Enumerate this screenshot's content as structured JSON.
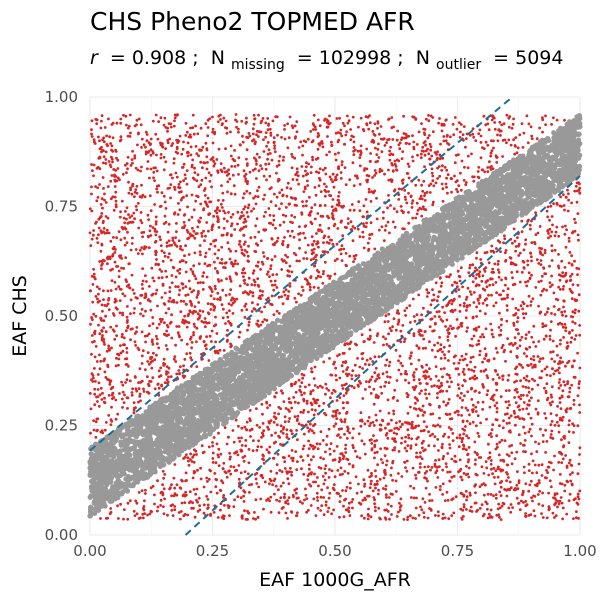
{
  "chart_data": {
    "type": "scatter",
    "title": "CHS Pheno2 TOPMED AFR",
    "subtitle": {
      "r_symbol": "r",
      "r_value": "= 0.908 ;",
      "n_symbol_1": "N",
      "n_sub_1": "missing",
      "n_value_1": "= 102998 ;",
      "n_symbol_2": "N",
      "n_sub_2": "outlier",
      "n_value_2": "= 5094"
    },
    "xlabel": "EAF 1000G_AFR",
    "ylabel": "EAF CHS",
    "xlim": [
      0,
      1
    ],
    "ylim": [
      0,
      1
    ],
    "x_ticks": [
      "0.00",
      "0.25",
      "0.50",
      "0.75",
      "1.00"
    ],
    "y_ticks": [
      "0.00",
      "0.25",
      "0.50",
      "0.75",
      "1.00"
    ],
    "grid": true,
    "series": [
      {
        "role": "inlier",
        "color": "#999999",
        "band": {
          "x": [
            0,
            1
          ],
          "lower_at_x0": 0.04,
          "upper_at_x0": 0.2,
          "lower_at_x1": 0.82,
          "upper_at_x1": 0.96,
          "y_range": [
            0.035,
            0.96
          ]
        }
      },
      {
        "role": "outlier",
        "color": "#d62728",
        "count": 5094
      }
    ],
    "reference_lines": [
      {
        "style": "dashed",
        "color": "#1a6f9a",
        "x1": 0.0,
        "y1": 0.193,
        "x2": 0.862,
        "y2": 1.0
      },
      {
        "style": "dashed",
        "color": "#1a6f9a",
        "x1": 0.195,
        "y1": 0.0,
        "x2": 1.0,
        "y2": 0.82
      }
    ]
  }
}
